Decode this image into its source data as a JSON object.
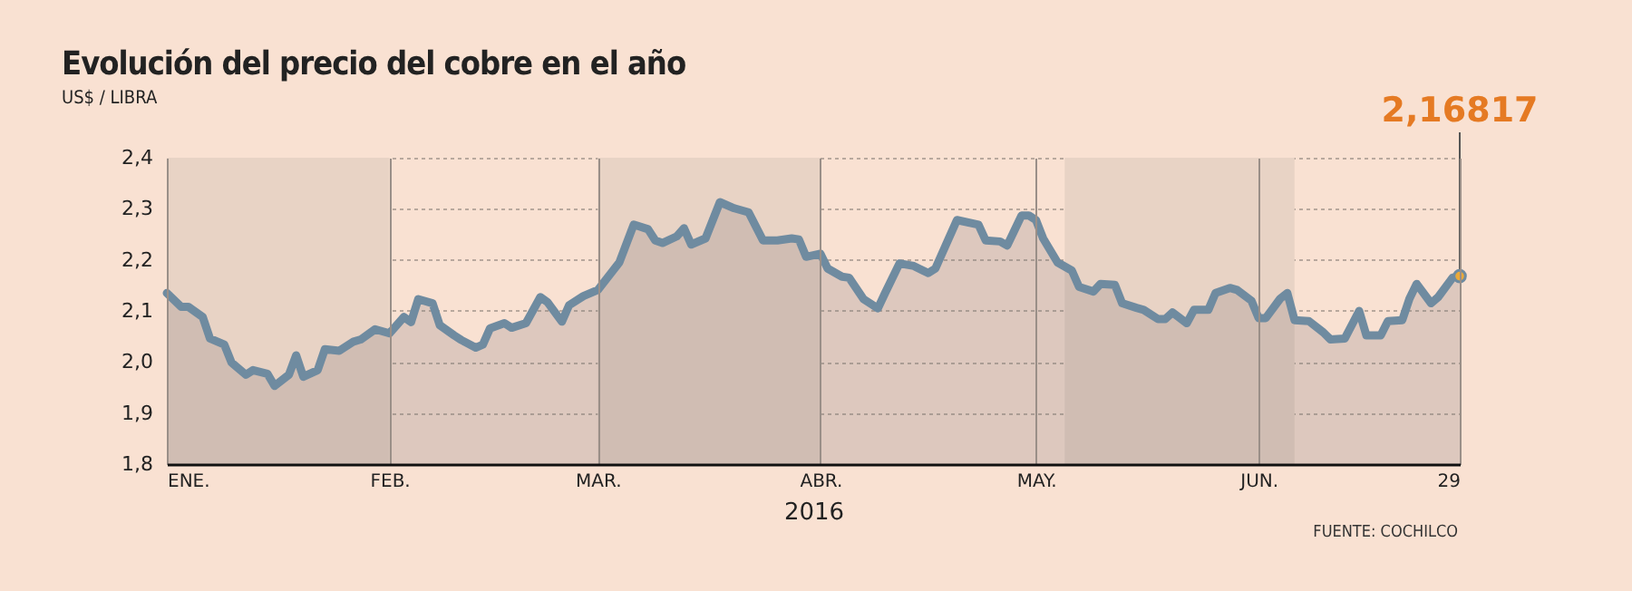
{
  "chart_data": {
    "type": "area",
    "title": "Evolución del precio del cobre en el año",
    "subtitle": "US$ / LIBRA",
    "xlabel": "2016",
    "annotations": [
      {
        "text": "2,16817",
        "x": "2016-06-29",
        "y": 2.16817
      },
      "FUENTE: COCHILCO"
    ],
    "x": [
      "2016-01-01",
      "2016-01-03",
      "2016-01-04",
      "2016-01-06",
      "2016-01-07",
      "2016-01-09",
      "2016-01-10",
      "2016-01-12",
      "2016-01-13",
      "2016-01-15",
      "2016-01-16",
      "2016-01-18",
      "2016-01-19",
      "2016-01-20",
      "2016-01-22",
      "2016-01-23",
      "2016-01-25",
      "2016-01-27",
      "2016-01-28",
      "2016-01-30",
      "2016-02-01",
      "2016-02-03",
      "2016-02-04",
      "2016-02-05",
      "2016-02-07",
      "2016-02-08",
      "2016-02-10",
      "2016-02-11",
      "2016-02-13",
      "2016-02-14",
      "2016-02-15",
      "2016-02-17",
      "2016-02-18",
      "2016-02-20",
      "2016-02-22",
      "2016-02-23",
      "2016-02-25",
      "2016-02-26",
      "2016-02-28",
      "2016-03-01",
      "2016-03-04",
      "2016-03-06",
      "2016-03-08",
      "2016-03-09",
      "2016-03-10",
      "2016-03-12",
      "2016-03-13",
      "2016-03-14",
      "2016-03-16",
      "2016-03-18",
      "2016-03-20",
      "2016-03-22",
      "2016-03-24",
      "2016-03-26",
      "2016-03-28",
      "2016-03-29",
      "2016-03-30",
      "2016-04-01",
      "2016-04-02",
      "2016-04-04",
      "2016-04-05",
      "2016-04-07",
      "2016-04-09",
      "2016-04-10",
      "2016-04-12",
      "2016-04-14",
      "2016-04-16",
      "2016-04-17",
      "2016-04-20",
      "2016-04-23",
      "2016-04-24",
      "2016-04-26",
      "2016-04-27",
      "2016-04-29",
      "2016-04-30",
      "2016-05-01",
      "2016-05-02",
      "2016-05-04",
      "2016-05-06",
      "2016-05-07",
      "2016-05-09",
      "2016-05-10",
      "2016-05-12",
      "2016-05-13",
      "2016-05-15",
      "2016-05-16",
      "2016-05-18",
      "2016-05-19",
      "2016-05-20",
      "2016-05-22",
      "2016-05-23",
      "2016-05-25",
      "2016-05-26",
      "2016-05-28",
      "2016-05-29",
      "2016-05-31",
      "2016-06-01",
      "2016-06-02",
      "2016-06-04",
      "2016-06-05",
      "2016-06-06",
      "2016-06-08",
      "2016-06-10",
      "2016-06-11",
      "2016-06-13",
      "2016-06-15",
      "2016-06-16",
      "2016-06-18",
      "2016-06-19",
      "2016-06-21",
      "2016-06-22",
      "2016-06-23",
      "2016-06-25",
      "2016-06-26",
      "2016-06-28",
      "2016-06-29"
    ],
    "series": [
      {
        "color": "#6f8ba0",
        "values": [
          2.135,
          2.108,
          2.108,
          2.088,
          2.046,
          2.034,
          1.999,
          1.975,
          1.984,
          1.977,
          1.953,
          1.975,
          2.013,
          1.971,
          1.984,
          2.025,
          2.022,
          2.04,
          2.044,
          2.064,
          2.056,
          2.088,
          2.078,
          2.123,
          2.115,
          2.072,
          2.052,
          2.043,
          2.028,
          2.034,
          2.066,
          2.076,
          2.067,
          2.076,
          2.127,
          2.117,
          2.079,
          2.111,
          2.129,
          2.141,
          2.195,
          2.269,
          2.26,
          2.238,
          2.233,
          2.246,
          2.262,
          2.23,
          2.242,
          2.313,
          2.301,
          2.293,
          2.238,
          2.238,
          2.242,
          2.24,
          2.206,
          2.212,
          2.183,
          2.167,
          2.165,
          2.123,
          2.105,
          2.135,
          2.193,
          2.188,
          2.174,
          2.183,
          2.278,
          2.269,
          2.238,
          2.236,
          2.228,
          2.287,
          2.287,
          2.278,
          2.242,
          2.195,
          2.179,
          2.147,
          2.138,
          2.153,
          2.151,
          2.115,
          2.106,
          2.102,
          2.084,
          2.084,
          2.097,
          2.076,
          2.102,
          2.102,
          2.135,
          2.145,
          2.141,
          2.12,
          2.086,
          2.086,
          2.124,
          2.135,
          2.082,
          2.08,
          2.058,
          2.044,
          2.046,
          2.1,
          2.052,
          2.052,
          2.08,
          2.082,
          2.124,
          2.153,
          2.115,
          2.127,
          2.165,
          2.16817
        ]
      }
    ],
    "xlim": [
      "2016-01-01",
      "2016-06-29"
    ],
    "xticks": [
      {
        "value": "2016-01-01",
        "label": "ENE."
      },
      {
        "value": "2016-02-01",
        "label": "FEB."
      },
      {
        "value": "2016-03-01",
        "label": "MAR."
      },
      {
        "value": "2016-04-01",
        "label": "ABR."
      },
      {
        "value": "2016-05-01",
        "label": "MAY."
      },
      {
        "value": "2016-06-01",
        "label": "JUN."
      },
      {
        "value": "2016-06-29",
        "label": "29"
      }
    ],
    "ylim": [
      1.8,
      2.4
    ],
    "yticks": [
      {
        "value": 1.8,
        "label": "1,8"
      },
      {
        "value": 1.9,
        "label": "1,9"
      },
      {
        "value": 2.0,
        "label": "2,0"
      },
      {
        "value": 2.1,
        "label": "2,1"
      },
      {
        "value": 2.2,
        "label": "2,2"
      },
      {
        "value": 2.3,
        "label": "2,3"
      },
      {
        "value": 2.4,
        "label": "2,4"
      }
    ],
    "bands": [
      {
        "axis": "x",
        "from": "2016-01-01",
        "to": "2016-02-01",
        "color": "#e8d3c5"
      },
      {
        "axis": "x",
        "from": "2016-03-01",
        "to": "2016-04-01",
        "color": "#e8d3c5"
      },
      {
        "axis": "x",
        "from": "2016-05-05",
        "to": "2016-06-06",
        "color": "#e8d3c5"
      }
    ],
    "grid": true
  }
}
